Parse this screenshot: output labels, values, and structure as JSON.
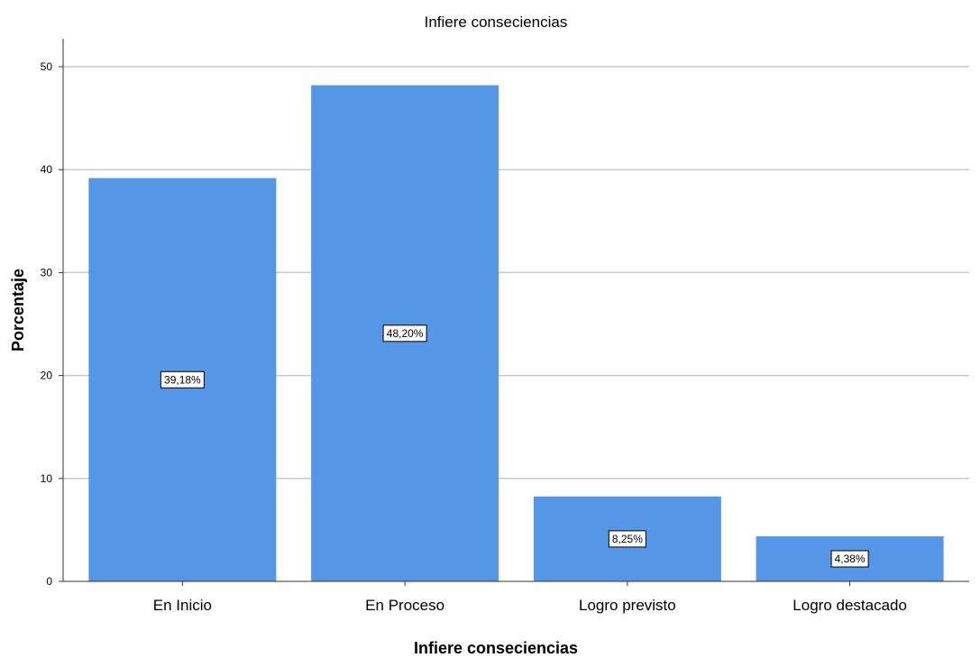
{
  "chart_data": {
    "type": "bar",
    "title": "Infiere conseciencias",
    "xlabel": "Infiere conseciencias",
    "ylabel": "Porcentaje",
    "categories": [
      "En Inicio",
      "En Proceso",
      "Logro previsto",
      "Logro destacado"
    ],
    "values": [
      39.18,
      48.2,
      8.25,
      4.38
    ],
    "data_labels": [
      "39,18%",
      "48,20%",
      "8,25%",
      "4,38%"
    ],
    "ylim": [
      0,
      50
    ],
    "yticks": [
      0,
      10,
      20,
      30,
      40,
      50
    ],
    "grid": true,
    "bar_color": "#5596e6",
    "grid_color": "#c8c8c8"
  }
}
